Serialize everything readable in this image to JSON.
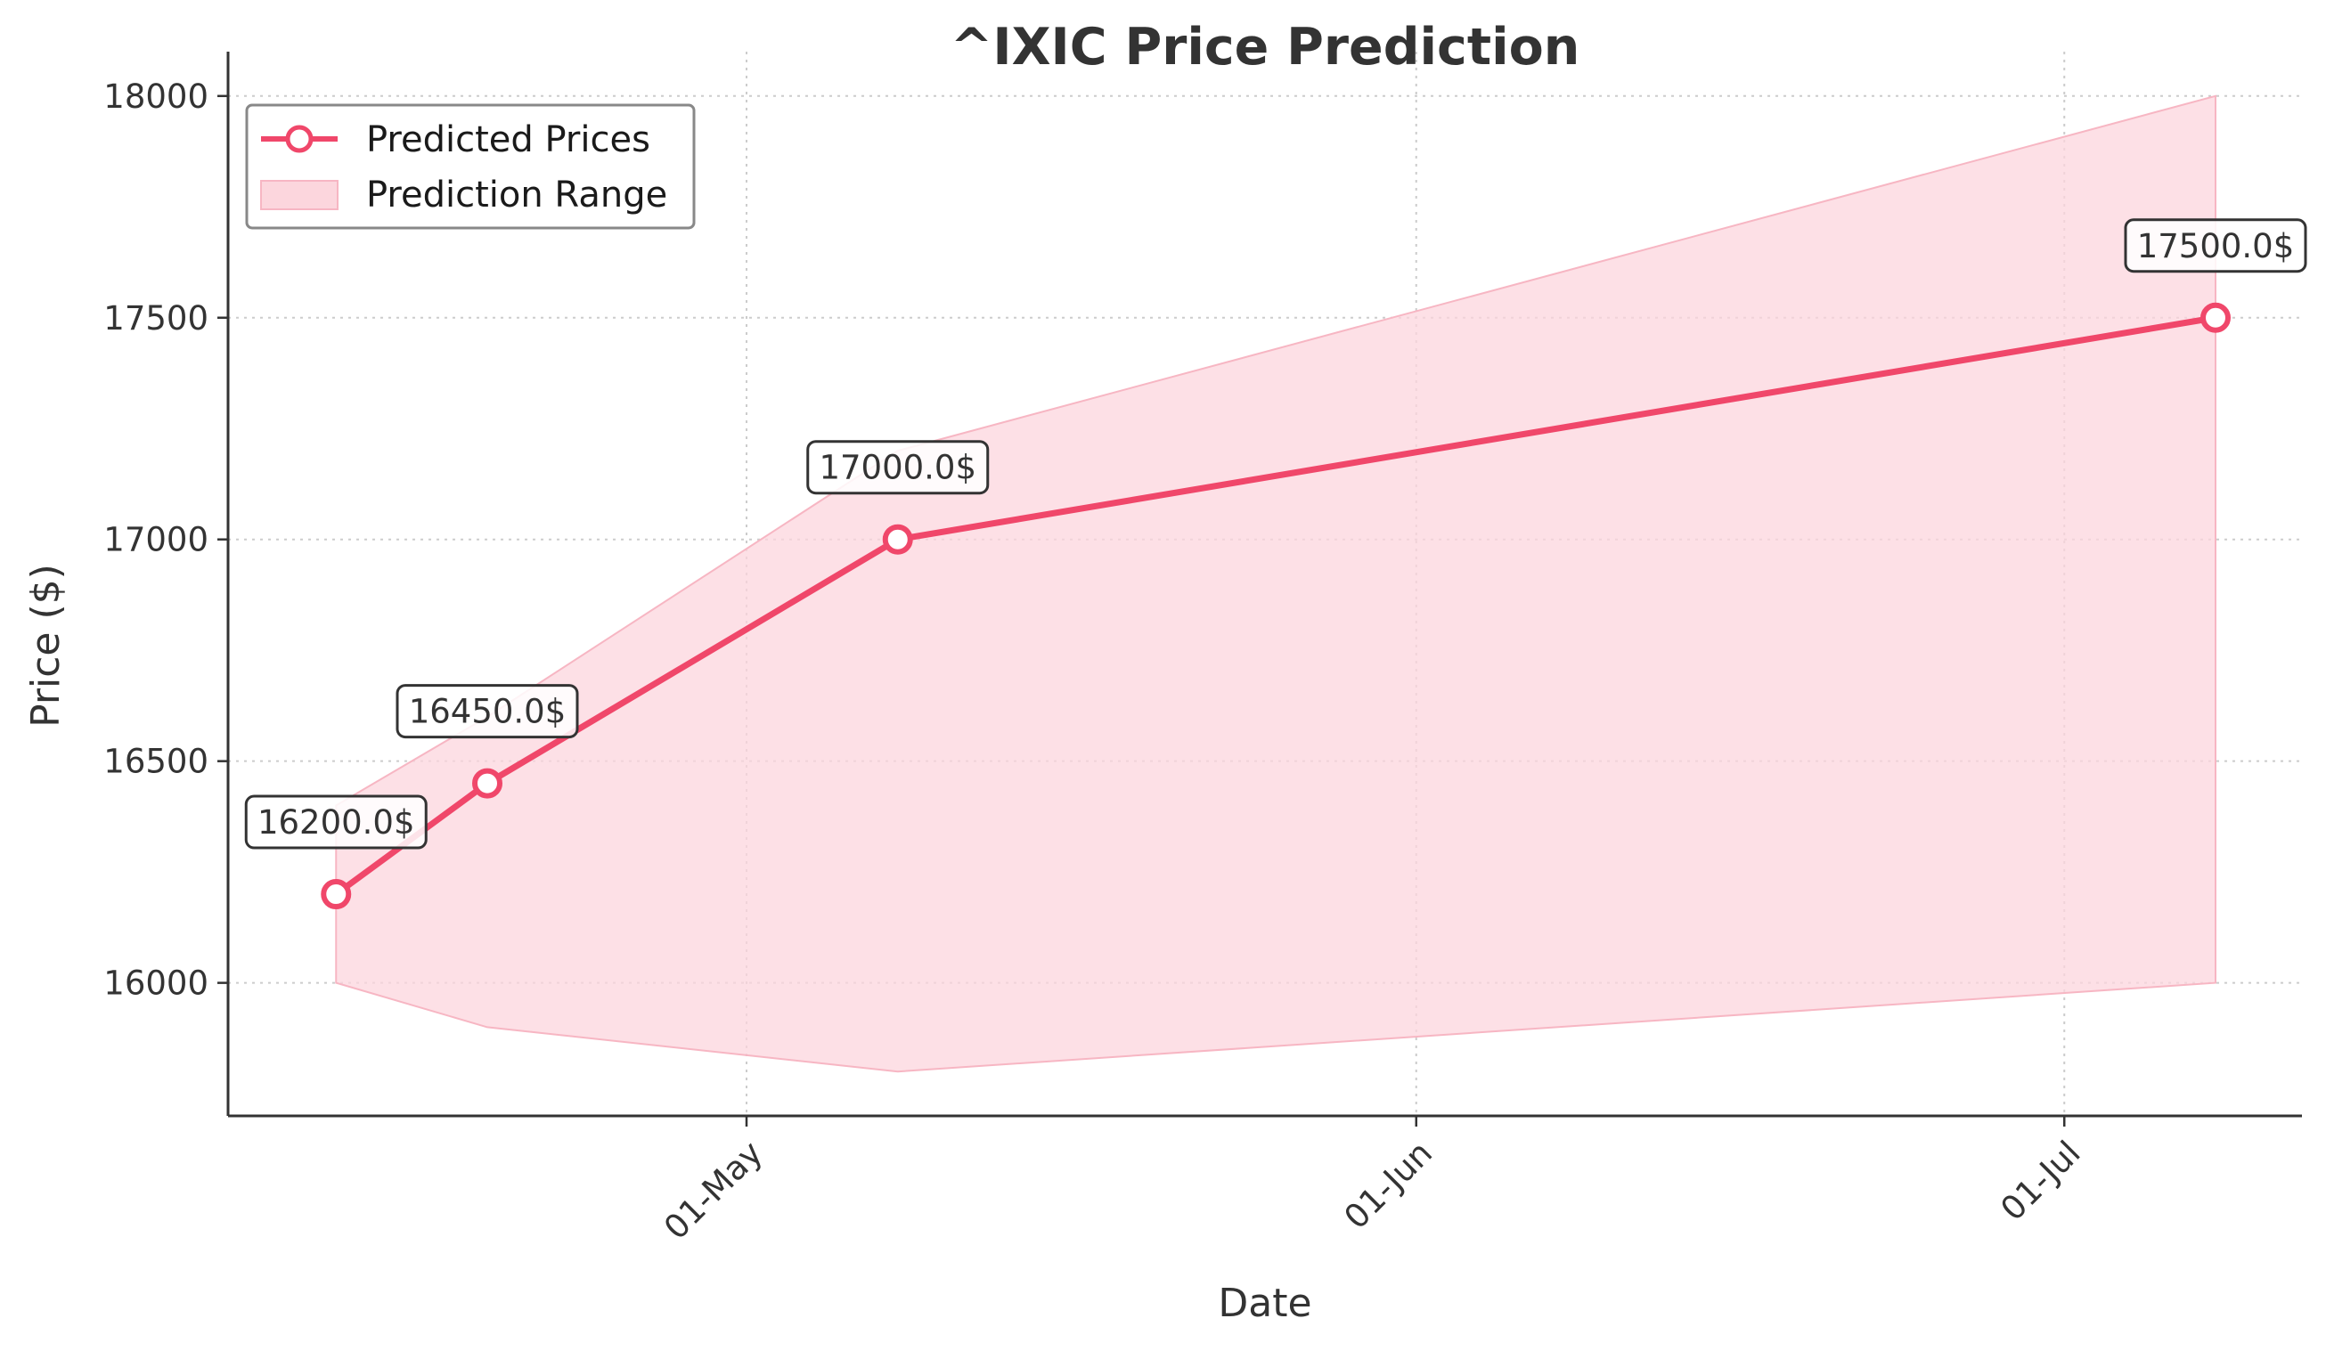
{
  "chart_data": {
    "type": "line",
    "title": "^IXIC Price Prediction",
    "xlabel": "Date",
    "ylabel": "Price ($)",
    "x_tick_labels": [
      {
        "date": "2024-05-01",
        "label": "01-May"
      },
      {
        "date": "2024-06-01",
        "label": "01-Jun"
      },
      {
        "date": "2024-07-01",
        "label": "01-Jul"
      }
    ],
    "y_ticks": [
      16000,
      16500,
      17000,
      17500,
      18000
    ],
    "xlim": [
      "2024-04-07",
      "2024-07-12"
    ],
    "ylim": [
      15700,
      18100
    ],
    "grid": true,
    "legend_position": "top-left",
    "series": [
      {
        "name": "Predicted Prices",
        "color": "#f0476a",
        "x": [
          "2024-04-12",
          "2024-04-19",
          "2024-05-08",
          "2024-07-08"
        ],
        "values": [
          16200.0,
          16450.0,
          17000.0,
          17500.0
        ],
        "labels": [
          "16200.0$",
          "16450.0$",
          "17000.0$",
          "17500.0$"
        ]
      }
    ],
    "range": {
      "name": "Prediction Range",
      "color": "#fcd6dd",
      "x": [
        "2024-04-12",
        "2024-04-19",
        "2024-05-08",
        "2024-07-08"
      ],
      "lower": [
        16000,
        15900,
        15800,
        16000
      ],
      "upper": [
        16400,
        16600,
        17200,
        18000
      ]
    }
  }
}
